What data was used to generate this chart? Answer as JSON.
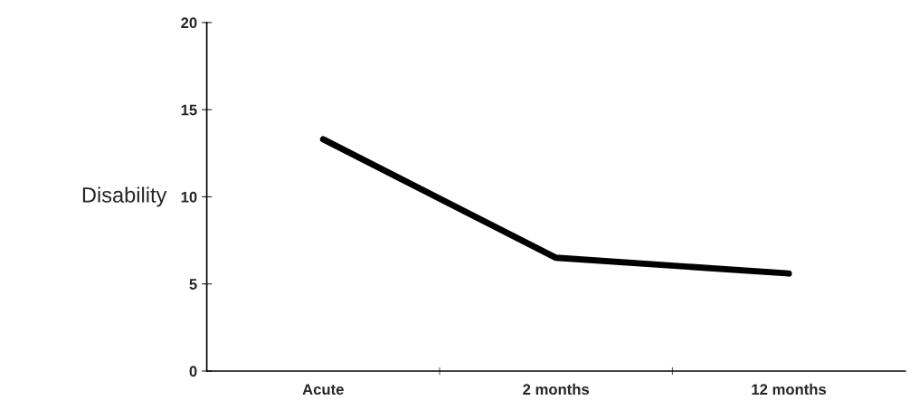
{
  "chart_data": {
    "type": "line",
    "ylabel": "Disability",
    "categories": [
      "Acute",
      "2 months",
      "12 months"
    ],
    "series": [
      {
        "color": "#000000",
        "values": [
          13.3,
          6.5,
          5.6
        ]
      }
    ],
    "ylim": [
      0,
      20
    ],
    "yticks": [
      0,
      5,
      10,
      15,
      20
    ],
    "grid": false,
    "marker": "none",
    "line_style": "solid"
  }
}
